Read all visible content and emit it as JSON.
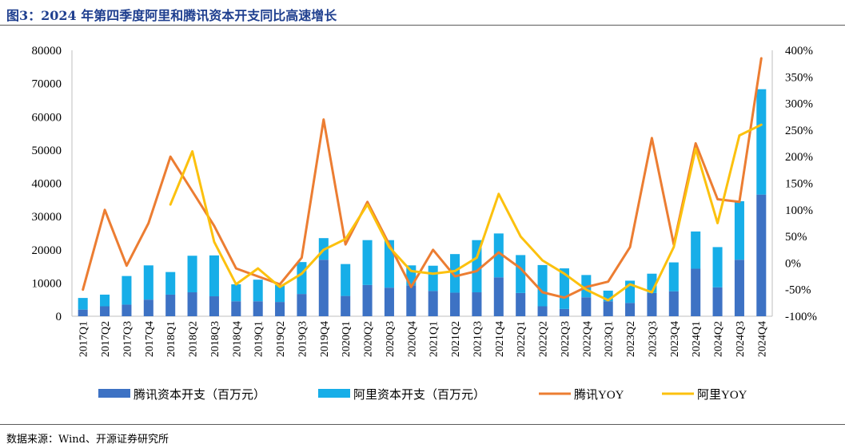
{
  "title": "图3：2024 年第四季度阿里和腾讯资本开支同比高速增长",
  "source": "数据来源：Wind、开源证券研究所",
  "colors": {
    "tencent_capex": "#3d72c4",
    "ali_capex": "#17aee8",
    "tencent_yoy": "#ec7d32",
    "ali_yoy": "#fcc10e",
    "title": "#1f3f8f"
  },
  "chart_data": {
    "type": "bar+line",
    "categories": [
      "2017Q1",
      "2017Q2",
      "2017Q3",
      "2017Q4",
      "2018Q1",
      "2018Q2",
      "2018Q3",
      "2018Q4",
      "2019Q1",
      "2019Q2",
      "2019Q3",
      "2019Q4",
      "2020Q1",
      "2020Q2",
      "2020Q3",
      "2020Q4",
      "2021Q1",
      "2021Q2",
      "2021Q3",
      "2021Q4",
      "2022Q1",
      "2022Q2",
      "2022Q3",
      "2022Q4",
      "2023Q1",
      "2023Q2",
      "2023Q3",
      "2023Q4",
      "2024Q1",
      "2024Q2",
      "2024Q3",
      "2024Q4"
    ],
    "bar_series": [
      {
        "name": "腾讯资本开支（百万元）",
        "color_key": "tencent_capex",
        "values": [
          2000,
          3000,
          3500,
          5000,
          6500,
          7200,
          6000,
          4500,
          4500,
          4300,
          6700,
          17000,
          6100,
          9400,
          8600,
          9300,
          7600,
          7100,
          7200,
          11700,
          7000,
          3000,
          2200,
          5700,
          4500,
          4000,
          7000,
          7500,
          14300,
          8700,
          17000,
          36600
        ]
      },
      {
        "name": "阿里资本开支（百万元）",
        "color_key": "ali_capex",
        "values": [
          3500,
          3500,
          8600,
          10300,
          6800,
          11000,
          12300,
          5100,
          6500,
          5100,
          9600,
          6500,
          9600,
          13500,
          14300,
          6000,
          7600,
          11600,
          15700,
          13200,
          11400,
          12400,
          12200,
          6700,
          3200,
          6700,
          5800,
          8700,
          11200,
          12100,
          17600,
          31700
        ]
      }
    ],
    "line_series": [
      {
        "name": "腾讯YOY",
        "color_key": "tencent_yoy",
        "values": [
          -50,
          100,
          -5,
          75,
          200,
          135,
          70,
          -10,
          -25,
          -40,
          10,
          270,
          35,
          115,
          35,
          -45,
          25,
          -25,
          -15,
          20,
          -10,
          -55,
          -65,
          -45,
          -35,
          30,
          235,
          35,
          225,
          120,
          115,
          385
        ]
      },
      {
        "name": "阿里YOY",
        "color_key": "ali_yoy",
        "values": [
          null,
          null,
          null,
          null,
          110,
          210,
          40,
          -40,
          -10,
          -45,
          -20,
          25,
          45,
          110,
          30,
          -15,
          -20,
          -15,
          10,
          130,
          50,
          5,
          -20,
          -50,
          -70,
          -40,
          -55,
          30,
          215,
          75,
          240,
          260
        ]
      }
    ],
    "y_left": {
      "min": 0,
      "max": 80000,
      "step": 10000,
      "ticks": [
        "0",
        "10000",
        "20000",
        "30000",
        "40000",
        "50000",
        "60000",
        "70000",
        "80000"
      ]
    },
    "y_right": {
      "min": -100,
      "max": 400,
      "step": 50,
      "ticks": [
        "-100%",
        "-50%",
        "0%",
        "50%",
        "100%",
        "150%",
        "200%",
        "250%",
        "300%",
        "350%",
        "400%"
      ]
    },
    "legend": {
      "position": "bottom",
      "items": [
        {
          "label": "腾讯资本开支（百万元）",
          "kind": "bar",
          "color_key": "tencent_capex"
        },
        {
          "label": "阿里资本开支（百万元）",
          "kind": "bar",
          "color_key": "ali_capex"
        },
        {
          "label": "腾讯YOY",
          "kind": "line",
          "color_key": "tencent_yoy"
        },
        {
          "label": "阿里YOY",
          "kind": "line",
          "color_key": "ali_yoy"
        }
      ]
    },
    "grid": false
  }
}
